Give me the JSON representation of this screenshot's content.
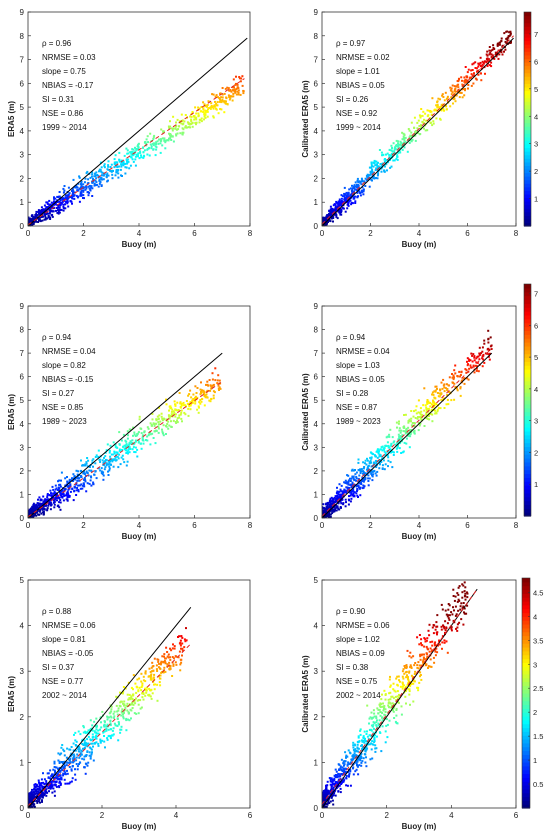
{
  "chart_data": [
    {
      "type": "scatter",
      "xlabel": "Buoy (m)",
      "ylabel": "ERA5 (m)",
      "xlim": [
        0,
        8
      ],
      "ylim": [
        0,
        9
      ],
      "xticks": [
        "0",
        "2",
        "4",
        "6",
        "8"
      ],
      "yticks": [
        "0",
        "1",
        "2",
        "3",
        "4",
        "5",
        "6",
        "7",
        "8",
        "9"
      ],
      "stats": [
        "ρ = 0.96",
        "NRMSE = 0.03",
        "slope = 0.75",
        "NBIAS = -0.17",
        "SI = 0.31",
        "NSE = 0.86",
        "1999 ~ 2014"
      ],
      "fit_line": {
        "x": [
          0,
          7.8
        ],
        "y": [
          0.05,
          6.2
        ]
      },
      "identity_line": {
        "x": [
          0,
          7.9
        ],
        "y": [
          0,
          7.9
        ]
      },
      "point_cloud": {
        "x_max": 7.8,
        "slope": 0.75,
        "spread": 0.35
      },
      "colorbar": null
    },
    {
      "type": "scatter",
      "xlabel": "Buoy (m)",
      "ylabel": "Calibrated ERA5 (m)",
      "xlim": [
        0,
        8
      ],
      "ylim": [
        0,
        9
      ],
      "xticks": [
        "0",
        "2",
        "4",
        "6",
        "8"
      ],
      "yticks": [
        "0",
        "1",
        "2",
        "3",
        "4",
        "5",
        "6",
        "7",
        "8",
        "9"
      ],
      "stats": [
        "ρ = 0.97",
        "NRMSE = 0.02",
        "slope = 1.01",
        "NBIAS = 0.05",
        "SI = 0.26",
        "NSE = 0.92",
        "1999 ~ 2014"
      ],
      "fit_line": {
        "x": [
          0,
          7.9
        ],
        "y": [
          0.08,
          8.0
        ]
      },
      "identity_line": {
        "x": [
          0,
          7.9
        ],
        "y": [
          0,
          7.9
        ]
      },
      "point_cloud": {
        "x_max": 7.8,
        "slope": 1.01,
        "spread": 0.35
      },
      "colorbar": {
        "min": 0,
        "max": 7.8,
        "ticks": [
          "1",
          "2",
          "3",
          "4",
          "5",
          "6",
          "7"
        ]
      }
    },
    {
      "type": "scatter",
      "xlabel": "Buoy (m)",
      "ylabel": "ERA5 (m)",
      "xlim": [
        0,
        8
      ],
      "ylim": [
        0,
        9
      ],
      "xticks": [
        "0",
        "2",
        "4",
        "6",
        "8"
      ],
      "yticks": [
        "0",
        "1",
        "2",
        "3",
        "4",
        "5",
        "6",
        "7",
        "8",
        "9"
      ],
      "stats": [
        "ρ = 0.94",
        "NRMSE = 0.04",
        "slope = 0.82",
        "NBIAS = -0.15",
        "SI = 0.27",
        "NSE = 0.85",
        "1989 ~ 2023"
      ],
      "fit_line": {
        "x": [
          0,
          7.0
        ],
        "y": [
          0.05,
          5.8
        ]
      },
      "identity_line": {
        "x": [
          0,
          7.0
        ],
        "y": [
          0,
          7.0
        ]
      },
      "point_cloud": {
        "x_max": 7.0,
        "slope": 0.82,
        "spread": 0.45
      },
      "colorbar": null
    },
    {
      "type": "scatter",
      "xlabel": "Buoy (m)",
      "ylabel": "Calibrated ERA5 (m)",
      "xlim": [
        0,
        8
      ],
      "ylim": [
        0,
        9
      ],
      "xticks": [
        "0",
        "2",
        "4",
        "6",
        "8"
      ],
      "yticks": [
        "0",
        "1",
        "2",
        "3",
        "4",
        "5",
        "6",
        "7",
        "8",
        "9"
      ],
      "stats": [
        "ρ = 0.94",
        "NRMSE = 0.04",
        "slope = 1.03",
        "NBIAS = 0.05",
        "SI = 0.28",
        "NSE = 0.87",
        "1989 ~ 2023"
      ],
      "fit_line": {
        "x": [
          0,
          7.0
        ],
        "y": [
          0.08,
          7.2
        ]
      },
      "identity_line": {
        "x": [
          0,
          7.0
        ],
        "y": [
          0,
          7.0
        ]
      },
      "point_cloud": {
        "x_max": 7.0,
        "slope": 1.03,
        "spread": 0.5
      },
      "colorbar": {
        "min": 0,
        "max": 7.3,
        "ticks": [
          "1",
          "2",
          "3",
          "4",
          "5",
          "6",
          "7"
        ]
      }
    },
    {
      "type": "scatter",
      "xlabel": "Buoy (m)",
      "ylabel": "ERA5 (m)",
      "xlim": [
        0,
        6
      ],
      "ylim": [
        0,
        5
      ],
      "xticks": [
        "0",
        "2",
        "4",
        "6"
      ],
      "yticks": [
        "0",
        "1",
        "2",
        "3",
        "4",
        "5"
      ],
      "stats": [
        "ρ = 0.88",
        "NRMSE = 0.06",
        "slope = 0.81",
        "NBIAS = -0.05",
        "SI = 0.37",
        "NSE = 0.77",
        "2002 ~ 2014"
      ],
      "fit_line": {
        "x": [
          0,
          4.4
        ],
        "y": [
          0.05,
          3.6
        ]
      },
      "identity_line": {
        "x": [
          0,
          4.4
        ],
        "y": [
          0,
          4.4
        ]
      },
      "point_cloud": {
        "x_max": 4.3,
        "slope": 0.81,
        "spread": 0.35
      },
      "colorbar": null
    },
    {
      "type": "scatter",
      "xlabel": "Buoy (m)",
      "ylabel": "Calibrated ERA5 (m)",
      "xlim": [
        0,
        6
      ],
      "ylim": [
        0,
        5
      ],
      "xticks": [
        "0",
        "2",
        "4",
        "6"
      ],
      "yticks": [
        "0",
        "1",
        "2",
        "3",
        "4",
        "5"
      ],
      "stats": [
        "ρ = 0.90",
        "NRMSE = 0.06",
        "slope = 1.02",
        "NBIAS = 0.09",
        "SI = 0.38",
        "NSE = 0.75",
        "2002 ~ 2014"
      ],
      "fit_line": {
        "x": [
          0,
          4.8
        ],
        "y": [
          0.08,
          4.8
        ]
      },
      "identity_line": {
        "x": [
          0,
          4.8
        ],
        "y": [
          0,
          4.8
        ]
      },
      "point_cloud": {
        "x_max": 4.5,
        "slope": 1.02,
        "spread": 0.4
      },
      "colorbar": {
        "min": 0,
        "max": 4.8,
        "ticks": [
          "0.5",
          "1",
          "1.5",
          "2",
          "2.5",
          "3",
          "3.5",
          "4",
          "4.5"
        ]
      }
    }
  ]
}
